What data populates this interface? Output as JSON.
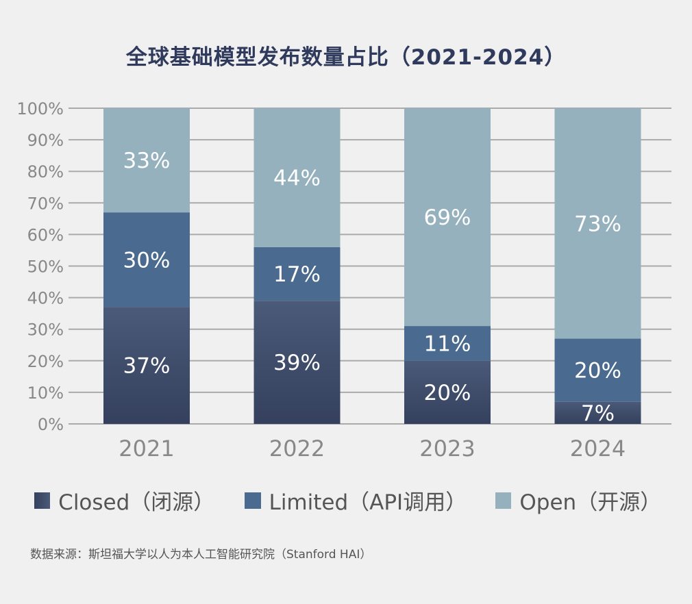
{
  "title": "全球基础模型发布数量占比（2021-2024）",
  "chart_data": {
    "type": "bar",
    "stacked": true,
    "title": "全球基础模型发布数量占比（2021-2024）",
    "categories": [
      "2021",
      "2022",
      "2023",
      "2024"
    ],
    "series": [
      {
        "name": "Closed（闭源）",
        "color": "#3b4868",
        "values": [
          37,
          39,
          20,
          7
        ]
      },
      {
        "name": "Limited（API调用）",
        "color": "#4a6b8f",
        "values": [
          30,
          17,
          11,
          20
        ]
      },
      {
        "name": "Open（开源）",
        "color": "#95b1bd",
        "values": [
          33,
          44,
          69,
          73
        ]
      }
    ],
    "data_labels": [
      [
        "37%",
        "39%",
        "20%",
        "7%"
      ],
      [
        "30%",
        "17%",
        "11%",
        "20%"
      ],
      [
        "33%",
        "44%",
        "69%",
        "73%"
      ]
    ],
    "yticks": [
      "0%",
      "10%",
      "20%",
      "30%",
      "40%",
      "50%",
      "60%",
      "70%",
      "80%",
      "90%",
      "100%"
    ],
    "ylim": [
      0,
      100
    ],
    "grid": true,
    "legend_position": "bottom",
    "xlabel": "",
    "ylabel": ""
  },
  "source": "数据来源：斯坦福大学以人为本人工智能研究院（Stanford HAI）"
}
